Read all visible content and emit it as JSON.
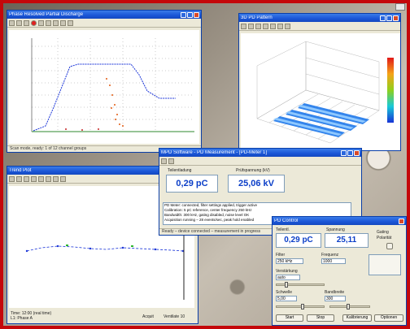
{
  "windows": {
    "plot2d": {
      "title": "Phase Resolved Partial Discharge",
      "status": "Scan mode, ready: 1 of 12 channel groups"
    },
    "plot3d": {
      "title": "3D PD Pattern"
    },
    "trend": {
      "title": "Trend Plot",
      "status_left": "Time: 12:00 (real time)\nL1: Phase A",
      "status_right_a": "Acquit",
      "status_right_b": "Ventilate 10"
    },
    "meter": {
      "title": "MPD Software - PD Measurement - [PD-Meter 1]",
      "charge_label": "Teilentladung",
      "charge_value": "0,29 pC",
      "voltage_label": "Prüfspannung (kV)",
      "voltage_value": "25,06 kV",
      "log_lines": [
        "PD Meter: connected, filter settings applied, trigger active",
        "Calibration: 5 pC reference, center frequency 250 kHz",
        "Bandwidth: 300 kHz, gating disabled, noise level OK",
        "Acquisition running – 28 events/sec, peak hold enabled"
      ],
      "status": "Ready – device connected – measurement in progress"
    },
    "control": {
      "title": "PD Control",
      "charge_label": "Teilentl.",
      "charge_value": "0,29 pC",
      "voltage_label": "Spannung",
      "voltage_value": "25,11",
      "side_label_1": "Gating",
      "side_label_2": "Polarität",
      "row_labels": [
        "Filter",
        "Frequenz",
        "Verstärkung",
        "Schwelle",
        "Bandbreite"
      ],
      "field_values": [
        "250 kHz",
        "1000",
        "auto",
        "5,00",
        "300"
      ],
      "buttons": [
        "Start",
        "Stop",
        "Kalibrierung",
        "Optionen"
      ]
    }
  },
  "colors": {
    "frame": "#c4070a",
    "title_bar": "#1a55d6",
    "readout": "#0b3ec8"
  }
}
